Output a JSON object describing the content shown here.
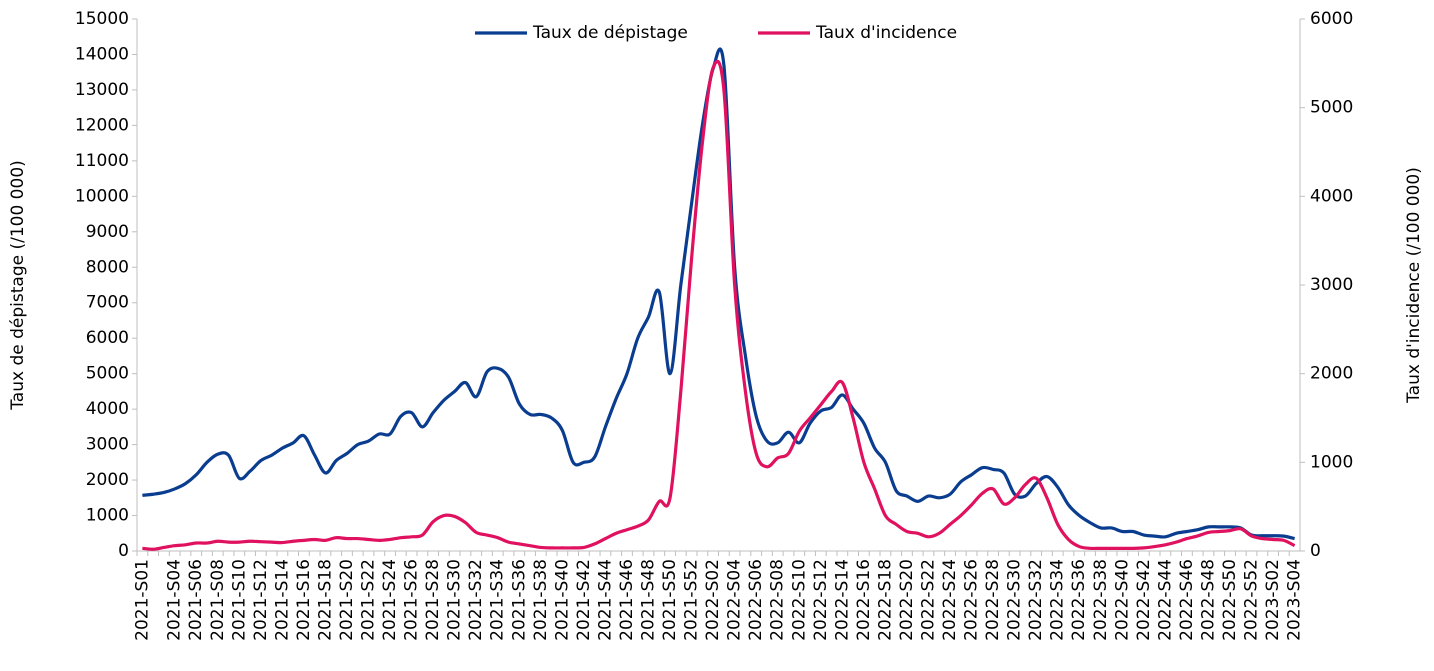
{
  "chart_data": {
    "type": "line",
    "categories": [
      "2021-S01",
      null,
      null,
      "2021-S04",
      null,
      "2021-S06",
      null,
      "2021-S08",
      null,
      "2021-S10",
      null,
      "2021-S12",
      null,
      "2021-S14",
      null,
      "2021-S16",
      null,
      "2021-S18",
      null,
      "2021-S20",
      null,
      "2021-S22",
      null,
      "2021-S24",
      null,
      "2021-S26",
      null,
      "2021-S28",
      null,
      "2021-S30",
      null,
      "2021-S32",
      null,
      "2021-S34",
      null,
      "2021-S36",
      null,
      "2021-S38",
      null,
      "2021-S40",
      null,
      "2021-S42",
      null,
      "2021-S44",
      null,
      "2021-S46",
      null,
      "2021-S48",
      null,
      "2021-S50",
      null,
      "2021-S52",
      null,
      "2022-S02",
      null,
      "2022-S04",
      null,
      "2022-S06",
      null,
      "2022-S08",
      null,
      "2022-S10",
      null,
      "2022-S12",
      null,
      "2022-S14",
      null,
      "2022-S16",
      null,
      "2022-S18",
      null,
      "2022-S20",
      null,
      "2022-S22",
      null,
      "2022-S24",
      null,
      "2022-S26",
      null,
      "2022-S28",
      null,
      "2022-S30",
      null,
      "2022-S32",
      null,
      "2022-S34",
      null,
      "2022-S36",
      null,
      "2022-S38",
      null,
      "2022-S40",
      null,
      "2022-S42",
      null,
      "2022-S44",
      null,
      "2022-S46",
      null,
      "2022-S48",
      null,
      "2022-S50",
      null,
      "2022-S52",
      null,
      "2023-S02",
      null,
      "2023-S04"
    ],
    "series": [
      {
        "name": "Taux de dépistage",
        "color": "#0a3d8f",
        "axis": "y",
        "values": [
          1570,
          1600,
          1650,
          1750,
          1900,
          2150,
          2500,
          2730,
          2700,
          2050,
          2250,
          2550,
          2700,
          2900,
          3050,
          3250,
          2700,
          2200,
          2550,
          2750,
          3000,
          3100,
          3300,
          3300,
          3800,
          3900,
          3500,
          3900,
          4250,
          4500,
          4750,
          4350,
          5050,
          5150,
          4900,
          4150,
          3850,
          3850,
          3750,
          3400,
          2500,
          2500,
          2650,
          3500,
          4300,
          5000,
          6000,
          6600,
          7300,
          5000,
          7500,
          9800,
          12000,
          13600,
          13700,
          8000,
          5500,
          3800,
          3100,
          3050,
          3350,
          3050,
          3600,
          3950,
          4050,
          4400,
          4000,
          3600,
          2900,
          2500,
          1700,
          1550,
          1400,
          1550,
          1500,
          1600,
          1950,
          2150,
          2350,
          2300,
          2200,
          1600,
          1550,
          1900,
          2100,
          1800,
          1300,
          1000,
          800,
          650,
          650,
          550,
          550,
          450,
          420,
          400,
          500,
          550,
          600,
          680,
          680,
          680,
          650,
          450,
          430,
          430,
          420,
          350
        ]
      },
      {
        "name": "Taux d'incidence",
        "color": "#e0115f",
        "axis": "y2",
        "values": [
          30,
          20,
          40,
          60,
          70,
          90,
          90,
          110,
          100,
          100,
          110,
          105,
          100,
          95,
          110,
          120,
          130,
          120,
          150,
          140,
          140,
          130,
          120,
          130,
          150,
          160,
          180,
          330,
          400,
          390,
          320,
          210,
          180,
          150,
          100,
          80,
          60,
          40,
          35,
          35,
          35,
          40,
          80,
          140,
          200,
          240,
          280,
          350,
          560,
          600,
          1800,
          3300,
          4600,
          5450,
          5200,
          3000,
          1800,
          1100,
          950,
          1050,
          1100,
          1350,
          1500,
          1650,
          1800,
          1900,
          1500,
          1000,
          700,
          400,
          300,
          220,
          200,
          160,
          200,
          300,
          400,
          520,
          650,
          700,
          530,
          600,
          750,
          820,
          600,
          300,
          130,
          50,
          30,
          30,
          30,
          30,
          30,
          35,
          50,
          70,
          100,
          140,
          170,
          210,
          220,
          230,
          250,
          170,
          140,
          130,
          120,
          60
        ]
      }
    ],
    "y_label": "Taux de dépistage (/100 000)",
    "y2_label": "Taux d'incidence (/100 000)",
    "ylim": [
      0,
      15000
    ],
    "yticks": [
      0,
      1000,
      2000,
      3000,
      4000,
      5000,
      6000,
      7000,
      8000,
      9000,
      10000,
      11000,
      12000,
      13000,
      14000,
      15000
    ],
    "y2lim": [
      0,
      6000
    ],
    "y2ticks": [
      0,
      1000,
      2000,
      3000,
      4000,
      5000,
      6000
    ],
    "legend": "top",
    "grid": false
  }
}
